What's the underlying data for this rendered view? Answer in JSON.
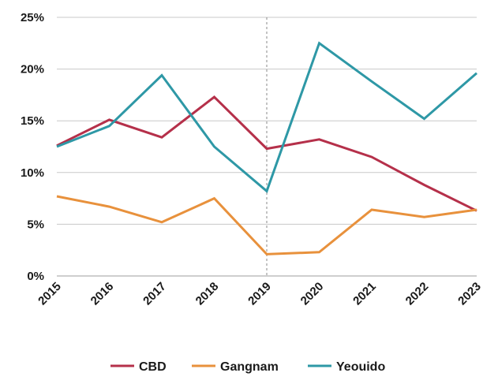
{
  "chart_data": {
    "type": "line",
    "x": [
      "2015",
      "2016",
      "2017",
      "2018",
      "2019",
      "2020",
      "2021",
      "2022",
      "2023"
    ],
    "y_ticks": [
      "0%",
      "5%",
      "10%",
      "15%",
      "20%",
      "25%"
    ],
    "ylim": [
      0,
      25
    ],
    "y_unit": "%",
    "grid": "horizontal",
    "reference_line_at": "2019",
    "legend_position": "bottom",
    "series": [
      {
        "name": "CBD",
        "color": "#b5304a",
        "values": [
          12.6,
          15.1,
          13.4,
          17.3,
          12.3,
          13.2,
          11.5,
          8.8,
          6.3
        ]
      },
      {
        "name": "Gangnam",
        "color": "#e8913c",
        "values": [
          7.7,
          6.7,
          5.2,
          7.5,
          2.1,
          2.3,
          6.4,
          5.7,
          6.4
        ]
      },
      {
        "name": "Yeouido",
        "color": "#2e98a6",
        "values": [
          12.5,
          14.5,
          19.4,
          12.5,
          8.2,
          22.5,
          18.8,
          15.2,
          19.6
        ]
      }
    ]
  }
}
